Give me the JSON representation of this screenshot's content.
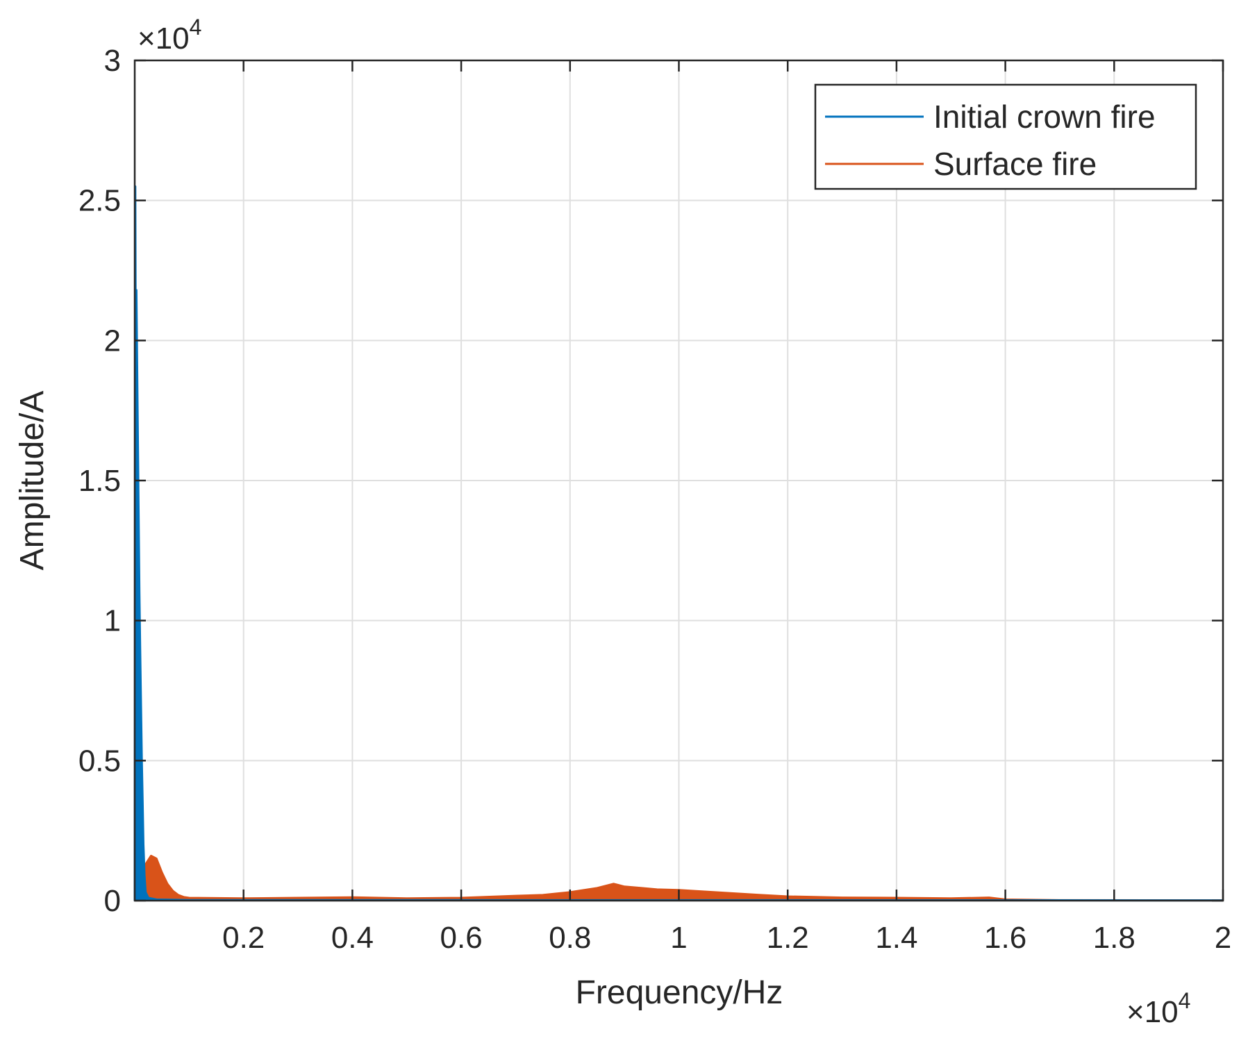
{
  "chart_data": {
    "type": "line",
    "xlabel": "Frequency/Hz",
    "ylabel": "Amplitude/A",
    "x_exponent_label": "×10^4",
    "y_exponent_label": "×10^4",
    "xlim": [
      0,
      20000
    ],
    "ylim": [
      0,
      30000
    ],
    "x_ticks": [
      2000,
      4000,
      6000,
      8000,
      10000,
      12000,
      14000,
      16000,
      18000,
      20000
    ],
    "x_tick_labels": [
      "0.2",
      "0.4",
      "0.6",
      "0.8",
      "1",
      "1.2",
      "1.4",
      "1.6",
      "1.8",
      "2"
    ],
    "y_ticks": [
      0,
      5000,
      10000,
      15000,
      20000,
      25000,
      30000
    ],
    "y_tick_labels": [
      "0",
      "0.5",
      "1",
      "1.5",
      "2",
      "2.5",
      "3"
    ],
    "grid": true,
    "legend_position": "top-right",
    "series": [
      {
        "name": "Initial crown fire",
        "color": "#0072BD",
        "points": [
          [
            0,
            0
          ],
          [
            10,
            25500
          ],
          [
            20,
            18000
          ],
          [
            30,
            21800
          ],
          [
            40,
            20000
          ],
          [
            55,
            17000
          ],
          [
            70,
            14000
          ],
          [
            85,
            11000
          ],
          [
            100,
            9000
          ],
          [
            115,
            7000
          ],
          [
            130,
            5000
          ],
          [
            145,
            3500
          ],
          [
            160,
            2000
          ],
          [
            180,
            900
          ],
          [
            200,
            300
          ],
          [
            250,
            100
          ],
          [
            400,
            40
          ],
          [
            1000,
            20
          ],
          [
            20000,
            10
          ]
        ]
      },
      {
        "name": "Surface fire",
        "color": "#D95319",
        "points": [
          [
            0,
            0
          ],
          [
            100,
            800
          ],
          [
            200,
            1300
          ],
          [
            300,
            1600
          ],
          [
            400,
            1500
          ],
          [
            500,
            1000
          ],
          [
            600,
            600
          ],
          [
            700,
            350
          ],
          [
            800,
            200
          ],
          [
            900,
            130
          ],
          [
            1000,
            100
          ],
          [
            2000,
            80
          ],
          [
            3000,
            100
          ],
          [
            4000,
            120
          ],
          [
            5000,
            80
          ],
          [
            6000,
            100
          ],
          [
            7000,
            170
          ],
          [
            7500,
            200
          ],
          [
            8000,
            300
          ],
          [
            8500,
            450
          ],
          [
            8800,
            600
          ],
          [
            9000,
            500
          ],
          [
            9300,
            450
          ],
          [
            9600,
            400
          ],
          [
            10000,
            380
          ],
          [
            10500,
            320
          ],
          [
            11000,
            260
          ],
          [
            11500,
            200
          ],
          [
            12000,
            150
          ],
          [
            12500,
            130
          ],
          [
            13000,
            110
          ],
          [
            14000,
            100
          ],
          [
            15000,
            80
          ],
          [
            15700,
            110
          ],
          [
            16000,
            40
          ],
          [
            17000,
            15
          ],
          [
            20000,
            10
          ]
        ]
      }
    ]
  }
}
